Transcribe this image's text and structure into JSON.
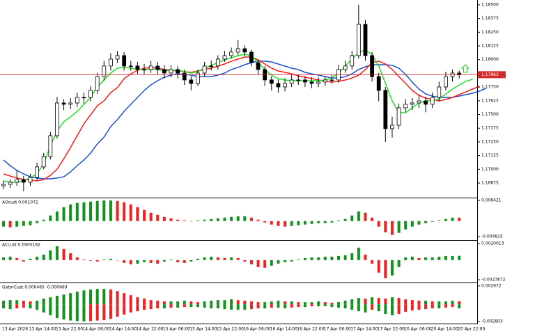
{
  "chart_data": [
    {
      "type": "candlestick",
      "categories": [
        "13 Apr 2026",
        null,
        null,
        null,
        "13 Apr 14:00",
        null,
        null,
        null,
        "13 Apr 22:00",
        null,
        null,
        null,
        "14 Apr 06:00",
        null,
        null,
        null,
        "14 Apr 14:00",
        null,
        null,
        null,
        "14 Apr 22:00",
        null,
        null,
        null,
        "15 Apr 06:00",
        null,
        null,
        null,
        "15 Apr 14:00",
        null,
        null,
        null,
        "15 Apr 22:00",
        null,
        null,
        null,
        "16 Apr 06:00",
        null,
        null,
        null,
        "16 Apr 14:00",
        null,
        null,
        null,
        "16 Apr 22:00",
        null,
        null,
        null,
        "17 Apr 06:00",
        null,
        null,
        null,
        "17 Apr 14:00",
        null,
        null,
        null,
        "17 Apr 22:00",
        null,
        null,
        null,
        "20 Apr 06:00",
        null,
        null,
        null,
        "20 Apr 14:00",
        null,
        null,
        null,
        "20 Apr 22:00",
        null,
        null,
        null,
        null
      ],
      "open": [
        1.1685,
        1.16863,
        1.16882,
        1.16907,
        1.16882,
        1.16926,
        1.17022,
        1.17117,
        1.17307,
        1.17605,
        1.17593,
        1.17605,
        1.17656,
        1.17656,
        1.1772,
        1.17846,
        1.17942,
        1.18005,
        1.18037,
        1.17942,
        1.17942,
        1.1791,
        1.1791,
        1.17942,
        1.1791,
        1.17878,
        1.1791,
        1.17878,
        1.17815,
        1.17783,
        1.17878,
        1.17942,
        1.17942,
        1.18005,
        1.18037,
        1.18069,
        1.181,
        1.18069,
        1.17973,
        1.1791,
        1.17815,
        1.17783,
        1.17751,
        1.17783,
        1.17815,
        1.17815,
        1.17796,
        1.17783,
        1.17796,
        1.17815,
        1.17815,
        1.1791,
        1.17942,
        1.18037,
        1.18322,
        1.18037,
        1.17846,
        1.1772,
        1.17371,
        1.17402,
        1.17561,
        1.17593,
        1.17605,
        1.17624,
        1.17593,
        1.17656,
        1.17751,
        1.17846,
        1.17878,
        null,
        null,
        null,
        null
      ],
      "high": [
        1.16895,
        1.16912,
        1.1699,
        1.1694,
        1.1696,
        1.1706,
        1.1715,
        1.1734,
        1.1766,
        1.1764,
        1.1765,
        1.177,
        1.177,
        1.1776,
        1.1788,
        1.1799,
        1.1806,
        1.1808,
        1.1807,
        1.1799,
        1.1798,
        1.1796,
        1.1799,
        1.1798,
        1.1795,
        1.1795,
        1.1794,
        1.1791,
        1.1785,
        1.1791,
        1.1798,
        1.1799,
        1.1804,
        1.1808,
        1.1811,
        1.1818,
        1.1813,
        1.1809,
        1.18,
        1.1794,
        1.1785,
        1.1782,
        1.1783,
        1.1786,
        1.1786,
        1.1785,
        1.1784,
        1.1784,
        1.1785,
        1.1786,
        1.1795,
        1.1799,
        1.1808,
        1.185,
        1.1836,
        1.1807,
        1.1788,
        1.1775,
        1.1748,
        1.176,
        1.1764,
        1.1765,
        1.1768,
        1.1766,
        1.177,
        1.178,
        1.1789,
        1.1791,
        1.179,
        null,
        null,
        null,
        null
      ],
      "low": [
        1.1682,
        1.1683,
        1.1685,
        1.168,
        1.1685,
        1.169,
        1.17,
        1.1709,
        1.1728,
        1.1754,
        1.1755,
        1.1757,
        1.176,
        1.1762,
        1.1769,
        1.1781,
        1.179,
        1.1797,
        1.179,
        1.179,
        1.1787,
        1.1787,
        1.1788,
        1.1787,
        1.1783,
        1.1784,
        1.1783,
        1.1777,
        1.1772,
        1.1776,
        1.1785,
        1.179,
        1.1791,
        1.1798,
        1.1801,
        1.1804,
        1.1803,
        1.1794,
        1.1786,
        1.1776,
        1.1772,
        1.177,
        1.1771,
        1.1775,
        1.1777,
        1.1775,
        1.1774,
        1.1775,
        1.1776,
        1.1778,
        1.1779,
        1.1788,
        1.1791,
        1.1801,
        1.1799,
        1.178,
        1.1762,
        1.1725,
        1.1729,
        1.1737,
        1.1752,
        1.1754,
        1.1756,
        1.1752,
        1.1756,
        1.1762,
        1.1772,
        1.178,
        1.1783,
        null,
        null,
        null,
        null
      ],
      "close": [
        1.16863,
        1.16882,
        1.16907,
        1.16882,
        1.16926,
        1.17022,
        1.17117,
        1.17307,
        1.17605,
        1.17593,
        1.17605,
        1.17656,
        1.17656,
        1.1772,
        1.17846,
        1.17942,
        1.18005,
        1.18037,
        1.17942,
        1.17942,
        1.1791,
        1.1791,
        1.17942,
        1.1791,
        1.17878,
        1.1791,
        1.17878,
        1.17815,
        1.17783,
        1.17878,
        1.17942,
        1.17942,
        1.18005,
        1.18037,
        1.18069,
        1.181,
        1.18069,
        1.17973,
        1.1791,
        1.17815,
        1.17783,
        1.17751,
        1.17783,
        1.17815,
        1.17815,
        1.17796,
        1.17783,
        1.17796,
        1.17815,
        1.17815,
        1.1791,
        1.17942,
        1.18037,
        1.18322,
        1.18037,
        1.17846,
        1.1772,
        1.17371,
        1.17402,
        1.17561,
        1.17593,
        1.17605,
        1.17624,
        1.17593,
        1.17656,
        1.17751,
        1.17846,
        1.17878,
        1.17863,
        null,
        null,
        null,
        null
      ],
      "up_color": "#ffffff",
      "down_color": "#000000",
      "lines": [
        {
          "color": "#1e50d0",
          "values": [
            1.17085,
            1.17034,
            1.1699,
            1.16958,
            1.16932,
            1.1692,
            1.16913,
            1.16913,
            1.1692,
            1.16932,
            1.16977,
            1.17034,
            1.17085,
            1.17148,
            1.17231,
            1.17294,
            1.17389,
            1.17453,
            1.17529,
            1.17592,
            1.17656,
            1.17719,
            1.1777,
            1.17808,
            1.1784,
            1.17859,
            1.17871,
            1.17865,
            1.17859,
            1.17846,
            1.17846,
            1.17846,
            1.17859,
            1.17878,
            1.1791,
            1.17929,
            1.17954,
            1.17973,
            1.17986,
            1.17986,
            1.17979,
            1.1796,
            1.17941,
            1.17922,
            1.1791,
            1.17884,
            1.17871,
            1.17859,
            1.17846,
            1.17833,
            1.17833,
            1.17846,
            1.17871,
            1.1791,
            1.17935,
            1.17954,
            1.17954,
            1.17954,
            1.17948,
            1.17922,
            1.17865,
            1.17795,
            1.17732,
            1.17687,
            1.17668,
            1.17656,
            1.17656,
            1.17656,
            1.17668,
            1.17681,
            1.17694,
            1.17713,
            1.17738
          ]
        },
        {
          "color": "#ff1a1a",
          "values": [
            1.16958,
            1.16939,
            1.1692,
            1.16907,
            1.16901,
            1.16894,
            1.16907,
            1.16945,
            1.17002,
            1.17097,
            1.17199,
            1.17307,
            1.17415,
            1.17497,
            1.1758,
            1.17624,
            1.177,
            1.17745,
            1.17827,
            1.17871,
            1.17903,
            1.17922,
            1.17929,
            1.17922,
            1.1791,
            1.17903,
            1.17897,
            1.17891,
            1.17884,
            1.17897,
            1.1791,
            1.17922,
            1.17941,
            1.1796,
            1.17986,
            1.18005,
            1.18024,
            1.18024,
            1.17998,
            1.1796,
            1.17922,
            1.17897,
            1.17884,
            1.17871,
            1.17852,
            1.1784,
            1.17827,
            1.17814,
            1.17802,
            1.17795,
            1.17802,
            1.17814,
            1.17833,
            1.17859,
            1.1791,
            1.17973,
            1.17986,
            1.1796,
            1.1791,
            1.17846,
            1.17783,
            1.17719,
            1.17675,
            1.17649,
            1.17637,
            1.17624,
            1.17637,
            1.17656,
            1.17681,
            1.17706,
            1.17732,
            1.17757,
            null
          ]
        },
        {
          "color": "#22e022",
          "values": [
            1.16894,
            1.16882,
            1.16882,
            1.16894,
            1.16926,
            1.16958,
            1.17053,
            1.17212,
            1.17351,
            1.17434,
            1.17478,
            1.17529,
            1.17592,
            1.17656,
            1.17751,
            1.17814,
            1.17878,
            1.17922,
            1.17929,
            1.17922,
            1.1791,
            1.1791,
            1.17916,
            1.1791,
            1.17897,
            1.17903,
            1.17903,
            1.17891,
            1.17878,
            1.17891,
            1.17922,
            1.17948,
            1.17973,
            1.17998,
            1.18017,
            1.18036,
            1.18049,
            1.18036,
            1.17973,
            1.1791,
            1.17859,
            1.17827,
            1.17814,
            1.17808,
            1.17808,
            1.17808,
            1.17808,
            1.17808,
            1.17814,
            1.17833,
            1.17878,
            1.17941,
            1.18005,
            1.18068,
            1.18087,
            1.18049,
            1.17941,
            1.17783,
            1.17624,
            1.17516,
            1.17516,
            1.17561,
            1.17605,
            1.17624,
            1.17624,
            1.17643,
            1.17687,
            1.17732,
            1.1777,
            1.17802,
            1.17821,
            null,
            null
          ]
        }
      ],
      "price_line": 1.17863,
      "price_line_color": "#d42a2a",
      "ylim": [
        1.16742,
        1.18544
      ],
      "yticks": [
        {
          "value": 1.185,
          "label": "1.18500"
        },
        {
          "value": 1.18375,
          "label": "1.18375"
        },
        {
          "value": 1.1825,
          "label": "1.18250"
        },
        {
          "value": 1.18125,
          "label": "1.18125"
        },
        {
          "value": 1.18,
          "label": "1.18000"
        },
        {
          "value": 1.1775,
          "label": "1.17750"
        },
        {
          "value": 1.17625,
          "label": "1.17625"
        },
        {
          "value": 1.175,
          "label": "1.17500"
        },
        {
          "value": 1.17375,
          "label": "1.17375"
        },
        {
          "value": 1.1725,
          "label": "1.17250"
        },
        {
          "value": 1.17125,
          "label": "1.17125"
        },
        {
          "value": 1.17,
          "label": "1.17000"
        },
        {
          "value": 1.16875,
          "label": "1.16875"
        }
      ]
    },
    {
      "type": "bar",
      "title": "AOcust 0.001072",
      "color_by": "change",
      "up_color": "#14921e",
      "down_color": "#ee2222",
      "series": [
        {
          "values": [
            -0.00173,
            -0.00194,
            -0.00173,
            -0.00151,
            -0.0013,
            -0.00065,
            0.00043,
            0.00173,
            0.00302,
            0.00432,
            0.00518,
            0.00562,
            0.00583,
            0.00605,
            0.00626,
            0.0064,
            0.0064,
            0.00626,
            0.00583,
            0.00518,
            0.00432,
            0.00346,
            0.00259,
            0.00194,
            0.0013,
            0.00086,
            0.00043,
            0.00022,
            0,
            0.00022,
            0.00043,
            0.00065,
            0.00086,
            0.00108,
            0.0013,
            0.00151,
            0.00151,
            0.00108,
            0.00043,
            -0.00043,
            -0.00108,
            -0.00151,
            -0.00173,
            -0.00151,
            -0.0013,
            -0.00108,
            -0.00086,
            -0.00065,
            -0.00065,
            -0.00043,
            0.00022,
            0.00065,
            0.00173,
            0.00302,
            0.00259,
            0.00108,
            -0.00173,
            -0.00346,
            -0.00432,
            -0.00367,
            -0.00259,
            -0.00173,
            -0.00108,
            -0.00065,
            -0.00022,
            0.00022,
            0.00065,
            0.00108,
            0.00107
          ]
        }
      ],
      "ylim": [
        -0.0059,
        0.00707
      ],
      "yticks": [
        0.006421,
        -0.004815
      ]
    },
    {
      "type": "bar",
      "title": "ACcust 0.0005182",
      "color_by": "change",
      "up_color": "#14921e",
      "down_color": "#ee2222",
      "series": [
        {
          "values": [
            0.00034,
            0.00042,
            0.00025,
            -0.00017,
            0.00017,
            0.00042,
            0.00067,
            0.00118,
            0.00168,
            0.00134,
            0.00084,
            0.00034,
            8e-05,
            -8e-05,
            -0.00017,
            8e-05,
            0.00017,
            0,
            -0.00034,
            -0.0005,
            -0.00042,
            -0.00025,
            -0.00034,
            -0.00042,
            -0.00017,
            8e-05,
            -0.00025,
            -0.00034,
            -0.00017,
            0.00017,
            0.00034,
            0.00042,
            0.00034,
            0.00025,
            0.00034,
            0.00025,
            -0.00017,
            -0.0005,
            -0.00084,
            -0.00092,
            -0.00067,
            -0.00042,
            -0.00025,
            -0.00017,
            8e-05,
            0.00025,
            0.00034,
            0.00034,
            0.00042,
            0.00042,
            0.0005,
            0.00059,
            0.00084,
            0.00151,
            0.00067,
            -0.00042,
            -0.00151,
            -0.00218,
            -0.00185,
            -0.00084,
            0.00034,
            0.00042,
            0.00025,
            0.00034,
            0.00034,
            0.00042,
            0.0005,
            0.0005,
            0.00052
          ]
        }
      ],
      "ylim": [
        -0.0027,
        0.00234
      ],
      "yticks": [
        0.0020013,
        -0.0023672
      ]
    },
    {
      "type": "bar",
      "title": "GatorCust 0.000465 -0.000669",
      "color_by": "magnitude",
      "up_color": "#14921e",
      "down_color": "#ee2222",
      "series": [
        {
          "values": [
            0.00057,
            0.00068,
            0.00068,
            0.00057,
            0.00045,
            0.00057,
            0.00091,
            0.00113,
            0.00136,
            0.00158,
            0.00181,
            0.00204,
            0.00226,
            0.00238,
            0.00249,
            0.00249,
            0.00238,
            0.00215,
            0.00181,
            0.00147,
            0.00113,
            0.00091,
            0.00068,
            0.00057,
            0.00045,
            0.00045,
            0.00045,
            0.00057,
            0.00045,
            0.00034,
            0.00045,
            0.00057,
            0.00068,
            0.00068,
            0.00079,
            0.00068,
            0.00057,
            0.00045,
            0.00034,
            0.00034,
            0.00045,
            0.00057,
            0.00045,
            0.00045,
            0.00034,
            0.00034,
            0.00034,
            0.00045,
            0.00034,
            0.00023,
            0.00034,
            0.00057,
            0.00079,
            0.00102,
            0.00091,
            0.00113,
            0.00102,
            0.00091,
            0.00113,
            0.00102,
            0.00079,
            0.00068,
            0.00057,
            0.00057,
            0.00045,
            0.00045,
            0.00045,
            0.00057,
            0.000465
          ]
        },
        {
          "values": [
            -0.00068,
            -0.00079,
            -0.00068,
            -0.00057,
            -0.00068,
            -0.00091,
            -0.00136,
            -0.00181,
            -0.00226,
            -0.00249,
            -0.00265,
            -0.00275,
            -0.0028,
            -0.00275,
            -0.00265,
            -0.0026,
            -0.00238,
            -0.00204,
            -0.0017,
            -0.00136,
            -0.00113,
            -0.00091,
            -0.00079,
            -0.00068,
            -0.00068,
            -0.00057,
            -0.00057,
            -0.00045,
            -0.00045,
            -0.00045,
            -0.00057,
            -0.00068,
            -0.00068,
            -0.00079,
            -0.00091,
            -0.00091,
            -0.00091,
            -0.00079,
            -0.00068,
            -0.00068,
            -0.00057,
            -0.00057,
            -0.00068,
            -0.00057,
            -0.00045,
            -0.00045,
            -0.00034,
            -0.00034,
            -0.00034,
            -0.00045,
            -0.00057,
            -0.00068,
            -0.00091,
            -0.00113,
            -0.00136,
            -0.00091,
            -0.00113,
            -0.00158,
            -0.00181,
            -0.00158,
            -0.00125,
            -0.00102,
            -0.00091,
            -0.00079,
            -0.00068,
            -0.00068,
            -0.00057,
            -0.00045,
            -0.000669
          ]
        }
      ],
      "ylim": [
        -0.00315,
        0.00342
      ],
      "yticks": [
        0.002972,
        -0.002803
      ]
    }
  ]
}
